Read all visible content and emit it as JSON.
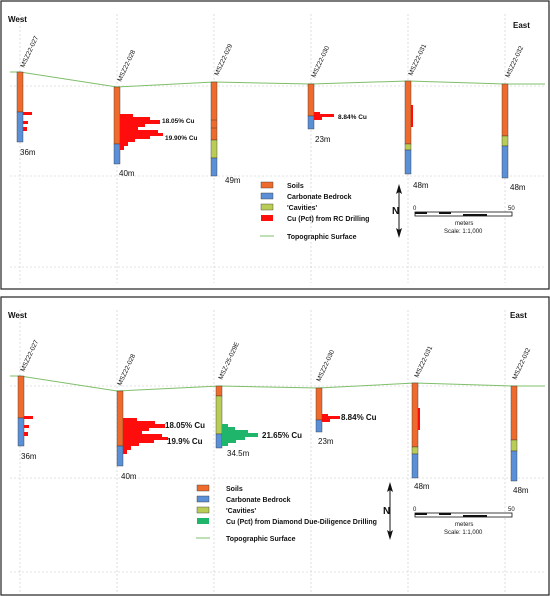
{
  "colors": {
    "soils": "#ee6b2d",
    "bedrock": "#5b8fd8",
    "cavities": "#b9cc55",
    "rc_cu": "#ff0d0d",
    "dd_cu": "#1fb56a",
    "topo": "#7fbf6a",
    "grid": "#c8c8c8"
  },
  "panels": [
    {
      "direction_west": "West",
      "direction_east": "East",
      "holes": [
        {
          "name": "MSZ22-027",
          "depth": "36m"
        },
        {
          "name": "MSZ22-028",
          "depth": "40m"
        },
        {
          "name": "MSZ22-029",
          "depth": "49m"
        },
        {
          "name": "MSZ22-030",
          "depth": "23m"
        },
        {
          "name": "MSZ22-031",
          "depth": "48m"
        },
        {
          "name": "MSZ22-032",
          "depth": "48m"
        }
      ],
      "annotations": [
        "18.05% Cu",
        "19.90% Cu",
        "8.84% Cu"
      ],
      "legend": [
        "Soils",
        "Carbonate Bedrock",
        "'Cavities'",
        "Cu (Pct) from RC Drilling",
        "Topographic Surface"
      ],
      "scale": {
        "zero": "0",
        "fifty": "50",
        "units": "meters",
        "ratio": "Scale: 1:1,000"
      },
      "north": "N"
    },
    {
      "direction_west": "West",
      "direction_east": "East",
      "holes": [
        {
          "name": "MSZ22-027",
          "depth": "36m"
        },
        {
          "name": "MSZ22-028",
          "depth": "40m"
        },
        {
          "name": "MSZ-25-029E",
          "depth": "34.5m"
        },
        {
          "name": "MSZ22-030",
          "depth": "23m"
        },
        {
          "name": "MSZ22-031",
          "depth": "48m"
        },
        {
          "name": "MSZ22-032",
          "depth": "48m"
        }
      ],
      "annotations": [
        "18.05% Cu",
        "19.9% Cu",
        "21.65% Cu",
        "8.84% Cu"
      ],
      "legend": [
        "Soils",
        "Carbonate Bedrock",
        "'Cavities'",
        "Cu (Pct) from Diamond Due-Diligence Drilling",
        "Topographic Surface"
      ],
      "scale": {
        "zero": "0",
        "fifty": "50",
        "units": "meters",
        "ratio": "Scale: 1:1,000"
      },
      "north": "N"
    }
  ]
}
